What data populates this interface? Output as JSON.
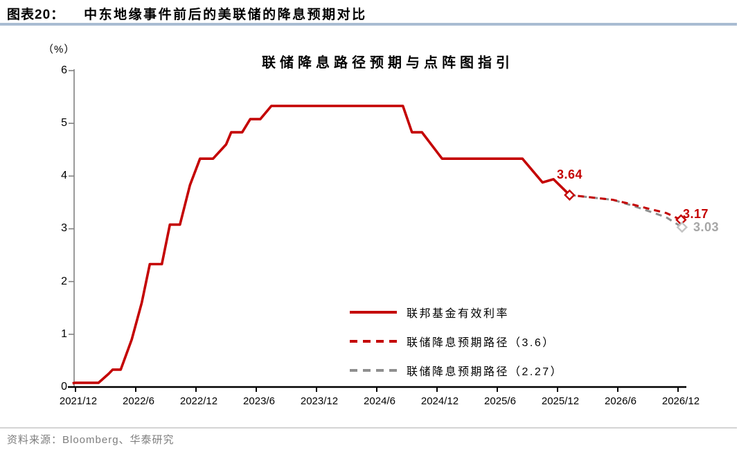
{
  "header": {
    "label": "图表20：",
    "title": "中东地缘事件前后的美联储的降息预期对比"
  },
  "chart": {
    "title": "联储降息路径预期与点阵图指引",
    "y_unit": "（%）"
  },
  "chart_data": {
    "type": "line",
    "title": "联储降息路径预期与点阵图指引",
    "grid": false,
    "legend_position": "inside lower right of plot",
    "x_axis": {
      "t_unit": "months since 2021/12",
      "tick_t": [
        0,
        6,
        12,
        18,
        24,
        30,
        36,
        42,
        48,
        54,
        60
      ],
      "tick_labels": [
        "2021/12",
        "2022/6",
        "2022/12",
        "2023/6",
        "2023/12",
        "2024/6",
        "2024/12",
        "2025/6",
        "2025/12",
        "2026/6",
        "2026/12"
      ]
    },
    "y_axis": {
      "label": "（%）",
      "min": 0,
      "max": 6,
      "ticks": [
        0,
        1,
        2,
        3,
        4,
        5,
        6
      ]
    },
    "series": [
      {
        "name": "联邦基金有效利率",
        "style": "solid",
        "color": "#c40000",
        "points": [
          [
            -0.3,
            0.07
          ],
          [
            0,
            0.08
          ],
          [
            1,
            0.08
          ],
          [
            2.3,
            0.08
          ],
          [
            3.3,
            0.25
          ],
          [
            3.7,
            0.33
          ],
          [
            4.5,
            0.33
          ],
          [
            5.6,
            0.9
          ],
          [
            6.6,
            1.6
          ],
          [
            7.4,
            2.33
          ],
          [
            8.6,
            2.33
          ],
          [
            9.4,
            3.08
          ],
          [
            10.4,
            3.08
          ],
          [
            11.4,
            3.83
          ],
          [
            12.4,
            4.33
          ],
          [
            13.7,
            4.33
          ],
          [
            15.0,
            4.6
          ],
          [
            15.5,
            4.83
          ],
          [
            16.6,
            4.83
          ],
          [
            17.4,
            5.08
          ],
          [
            18.4,
            5.08
          ],
          [
            19.5,
            5.33
          ],
          [
            32.6,
            5.33
          ],
          [
            33.5,
            4.83
          ],
          [
            34.5,
            4.83
          ],
          [
            36.5,
            4.33
          ],
          [
            44.5,
            4.33
          ],
          [
            46.5,
            3.88
          ],
          [
            47.6,
            3.94
          ],
          [
            49.2,
            3.64
          ]
        ]
      },
      {
        "name": "联储降息预期路径（3.6）",
        "style": "dashed",
        "color": "#c40000",
        "points": [
          [
            49.2,
            3.64
          ],
          [
            53.5,
            3.55
          ],
          [
            55.5,
            3.46
          ],
          [
            57.3,
            3.37
          ],
          [
            58.8,
            3.3
          ],
          [
            60.3,
            3.17
          ]
        ]
      },
      {
        "name": "联储降息预期路径（2.27）",
        "style": "dashed",
        "color": "#8f8f8f",
        "points": [
          [
            49.2,
            3.64
          ],
          [
            53.5,
            3.55
          ],
          [
            55.6,
            3.43
          ],
          [
            57.3,
            3.32
          ],
          [
            58.8,
            3.22
          ],
          [
            60.4,
            3.03
          ]
        ]
      }
    ],
    "markers": [
      {
        "t": 49.2,
        "v": 3.64,
        "label": "3.64",
        "color": "#c40000",
        "label_color": "#c40000"
      },
      {
        "t": 60.3,
        "v": 3.17,
        "label": "3.17",
        "color": "#c40000",
        "label_color": "#c40000"
      },
      {
        "t": 60.4,
        "v": 3.03,
        "label": "3.03",
        "color": "#c3c3c3",
        "label_color": "#a6a6a6"
      }
    ]
  },
  "footer": {
    "source": "资料来源：Bloomberg、华泰研究"
  }
}
